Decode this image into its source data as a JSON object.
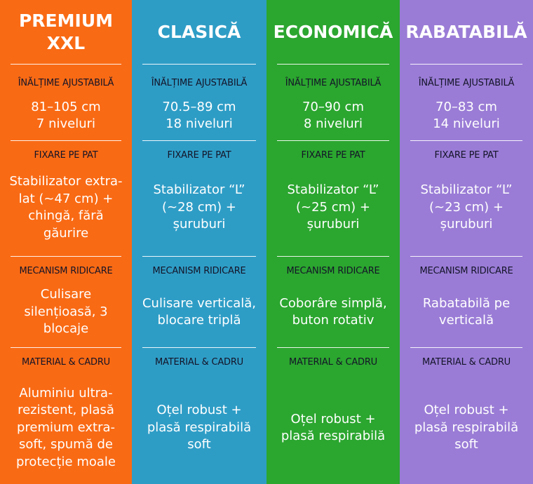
{
  "labels": {
    "height": "ÎNĂLȚIME AJUSTABILĂ",
    "fixing": "FIXARE PE PAT",
    "mechanism": "MECANISM RIDICARE",
    "material": "MATERIAL & CADRU"
  },
  "colors": [
    "#F96A14",
    "#2E9DC6",
    "#2BA62F",
    "#9A7CD6"
  ],
  "columns": [
    {
      "title": "PREMIUM XXL",
      "height": "81–105 cm\n7 niveluri",
      "fixing": "Stabilizator extra-lat (~47 cm) + chingă, fără găurire",
      "mechanism": "Culisare silențioasă, 3 blocaje",
      "material": "Aluminiu ultra-rezistent, plasă premium extra-soft, spumă de protecție moale"
    },
    {
      "title": "CLASICĂ",
      "height": "70.5–89 cm\n18 niveluri",
      "fixing": "Stabilizator “L” (~28 cm) + șuruburi",
      "mechanism": "Culisare verticală, blocare triplă",
      "material": "Oțel robust + plasă respirabilă soft"
    },
    {
      "title": "ECONOMICĂ",
      "height": "70–90 cm\n8 niveluri",
      "fixing": "Stabilizator “L” (~25 cm) + șuruburi",
      "mechanism": "Coborâre simplă, buton rotativ",
      "material": "Oțel robust + plasă respirabilă"
    },
    {
      "title": "RABATABILĂ",
      "height": "70–83 cm\n14 niveluri",
      "fixing": "Stabilizator “L” (~23 cm) + șuruburi",
      "mechanism": "Rabatabilă pe verticală",
      "material": "Oțel robust + plasă respirabilă soft"
    }
  ]
}
